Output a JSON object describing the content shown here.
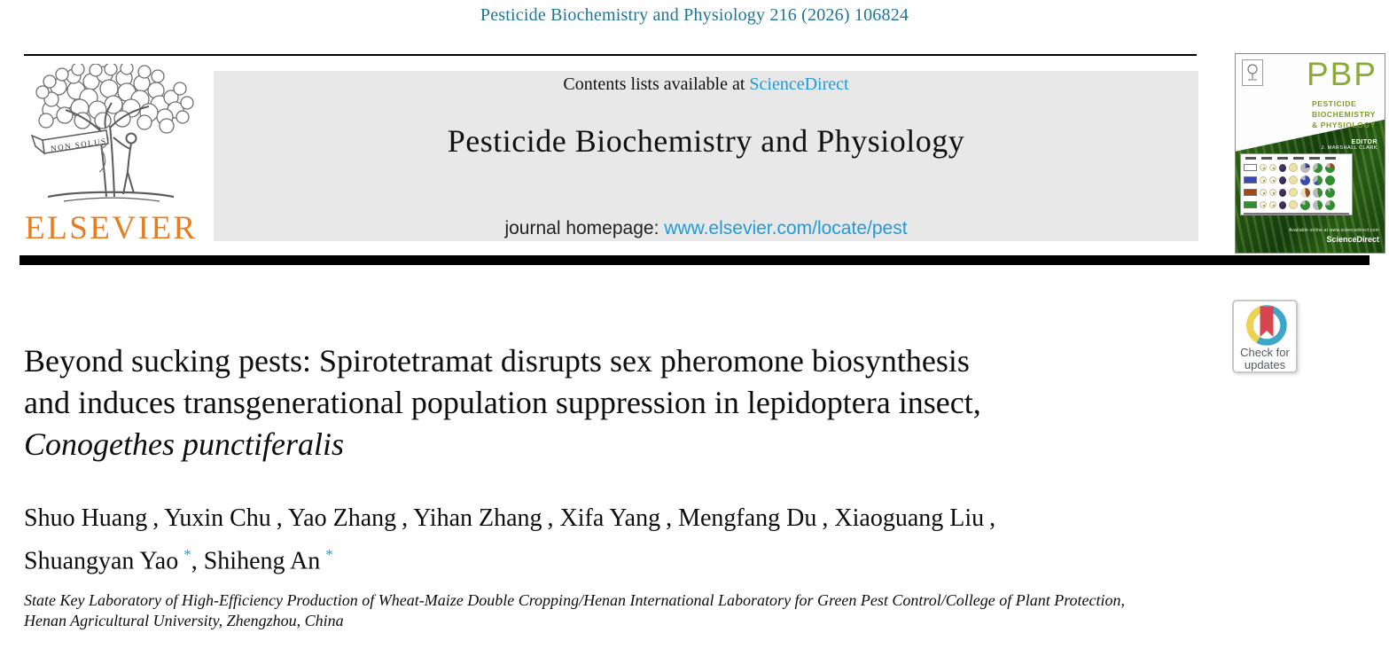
{
  "header": {
    "citation": "Pesticide Biochemistry and Physiology 216 (2026) 106824"
  },
  "masthead": {
    "contents_prefix": "Contents lists available at ",
    "contents_link": "ScienceDirect",
    "journal_title": "Pesticide Biochemistry and Physiology",
    "homepage_prefix": "journal homepage: ",
    "homepage_link": "www.elsevier.com/locate/pest"
  },
  "publisher": {
    "wordmark": "ELSEVIER",
    "motto": "NON SOLUS"
  },
  "cover": {
    "abbrev": "PBP",
    "name_line1": "PESTICIDE",
    "name_line2": "BIOCHEMISTRY",
    "name_line3": "& PHYSIOLOGY",
    "editor_label": "EDITOR",
    "editor_name": "J. MARSHALL CLARK",
    "available_line": "Available online at www.sciencedirect.com",
    "branding": "ScienceDirect"
  },
  "update_badge": {
    "line1": "Check for",
    "line2": "updates"
  },
  "article": {
    "title_lines": [
      "Beyond sucking pests: Spirotetramat disrupts sex pheromone biosynthesis",
      "and induces transgenerational population suppression in lepidoptera insect,"
    ],
    "title_species_italic": "Conogethes punctiferalis",
    "authors": [
      {
        "name": "Shuo Huang",
        "corresponding": false
      },
      {
        "name": "Yuxin Chu",
        "corresponding": false
      },
      {
        "name": "Yao Zhang",
        "corresponding": false
      },
      {
        "name": "Yihan Zhang",
        "corresponding": false
      },
      {
        "name": "Xifa Yang",
        "corresponding": false
      },
      {
        "name": "Mengfang Du",
        "corresponding": false
      },
      {
        "name": "Xiaoguang Liu",
        "corresponding": false
      },
      {
        "name": "Shuangyan Yao",
        "corresponding": true
      },
      {
        "name": "Shiheng An",
        "corresponding": true
      }
    ],
    "corresponding_marker": "*",
    "affiliation_lines": [
      "State Key Laboratory of High-Efficiency Production of Wheat-Maize Double Cropping/Henan International Laboratory for Green Pest Control/College of Plant Protection,",
      "Henan Agricultural University, Zhengzhou, China"
    ]
  },
  "theme": {
    "citation_teal": "#1e7596",
    "link_blue": "#219bd8",
    "elsevier_orange": "#e87c1e",
    "banner_gray": "#e8e8e8",
    "badge_blue": "#3ea6c9",
    "badge_yellow": "#efd24f",
    "badge_red": "#d7454e",
    "cover_pbp_green": "#8bab34"
  }
}
